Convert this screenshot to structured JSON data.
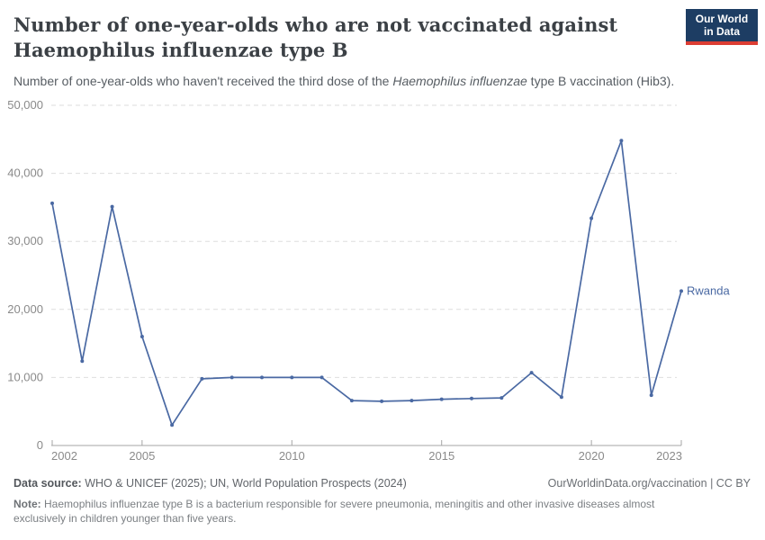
{
  "header": {
    "title_lines": [
      "Number of one-year-olds who are not vaccinated against",
      "Haemophilus influenzae type B"
    ],
    "subtitle_prefix": "Number of one-year-olds who haven't received the third dose of the ",
    "subtitle_italic": "Haemophilus influenzae",
    "subtitle_suffix": " type B vaccination (Hib3).",
    "logo": {
      "line1": "Our World",
      "line2": "in Data",
      "bg_color": "#1d3d63",
      "accent_color": "#dc3d33"
    }
  },
  "chart_data": {
    "type": "line",
    "title": "Number of one-year-olds who are not vaccinated against Haemophilus influenzae type B",
    "x": [
      2002,
      2003,
      2004,
      2005,
      2006,
      2007,
      2008,
      2009,
      2010,
      2011,
      2012,
      2013,
      2014,
      2015,
      2016,
      2017,
      2018,
      2019,
      2020,
      2021,
      2022,
      2023
    ],
    "series": [
      {
        "name": "Rwanda",
        "color": "#4a69a3",
        "values": [
          35600,
          12400,
          35100,
          16000,
          3000,
          9800,
          10000,
          10000,
          10000,
          10000,
          6600,
          6500,
          6600,
          6800,
          6900,
          7000,
          10700,
          7100,
          33400,
          44800,
          7400,
          22700
        ]
      }
    ],
    "xlabel": "",
    "ylabel": "",
    "ylim": [
      0,
      50000
    ],
    "xlim": [
      2002,
      2023
    ],
    "yticks": [
      0,
      10000,
      20000,
      30000,
      40000,
      50000
    ],
    "ytick_labels": [
      "0",
      "10,000",
      "20,000",
      "30,000",
      "40,000",
      "50,000"
    ],
    "xticks": [
      2002,
      2005,
      2010,
      2015,
      2020,
      2023
    ],
    "grid": "horizontal-dashed",
    "legend_position": "end-of-line-label",
    "end_label": "Rwanda",
    "axis_color": "#a5a5a5",
    "grid_color": "#dedede",
    "tick_label_color": "#8a8a8a"
  },
  "footer": {
    "source_label": "Data source:",
    "source_text": " WHO & UNICEF (2025); UN, World Population Prospects (2024)",
    "link_text": "OurWorldinData.org/vaccination",
    "license_sep": " | ",
    "license_text": "CC BY",
    "note_label": "Note:",
    "note_line1": " Haemophilus influenzae type B is a bacterium responsible for severe pneumonia, meningitis and other invasive diseases almost",
    "note_line2": "exclusively in children younger than five years."
  }
}
